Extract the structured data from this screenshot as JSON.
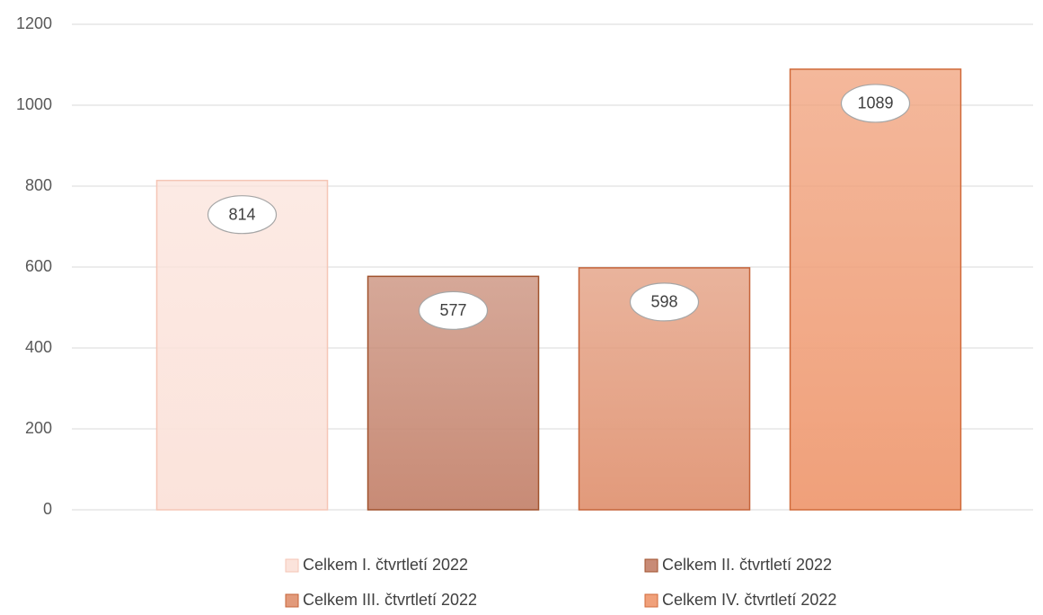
{
  "chart_data": {
    "type": "bar",
    "categories": [
      null
    ],
    "series": [
      {
        "name": "Celkem I. čtvrtletí 2022",
        "color": "#fbe3db",
        "edge_color": "#f5c6b6",
        "values": [
          814
        ]
      },
      {
        "name": "Celkem II. čtvrtletí 2022",
        "color": "#c88b76",
        "edge_color": "#a0522d",
        "values": [
          577
        ]
      },
      {
        "name": "Celkem III. čtvrtletí 2022",
        "color": "#e29a7b",
        "edge_color": "#c5643a",
        "values": [
          598
        ]
      },
      {
        "name": "Celkem IV. čtvrtletí 2022",
        "color": "#f0a07a",
        "edge_color": "#d06a3a",
        "values": [
          1089
        ]
      }
    ],
    "ylim": [
      0,
      1200
    ],
    "yticks": [
      0,
      200,
      400,
      600,
      800,
      1000,
      1200
    ],
    "grid": true,
    "legend": "bottom"
  }
}
